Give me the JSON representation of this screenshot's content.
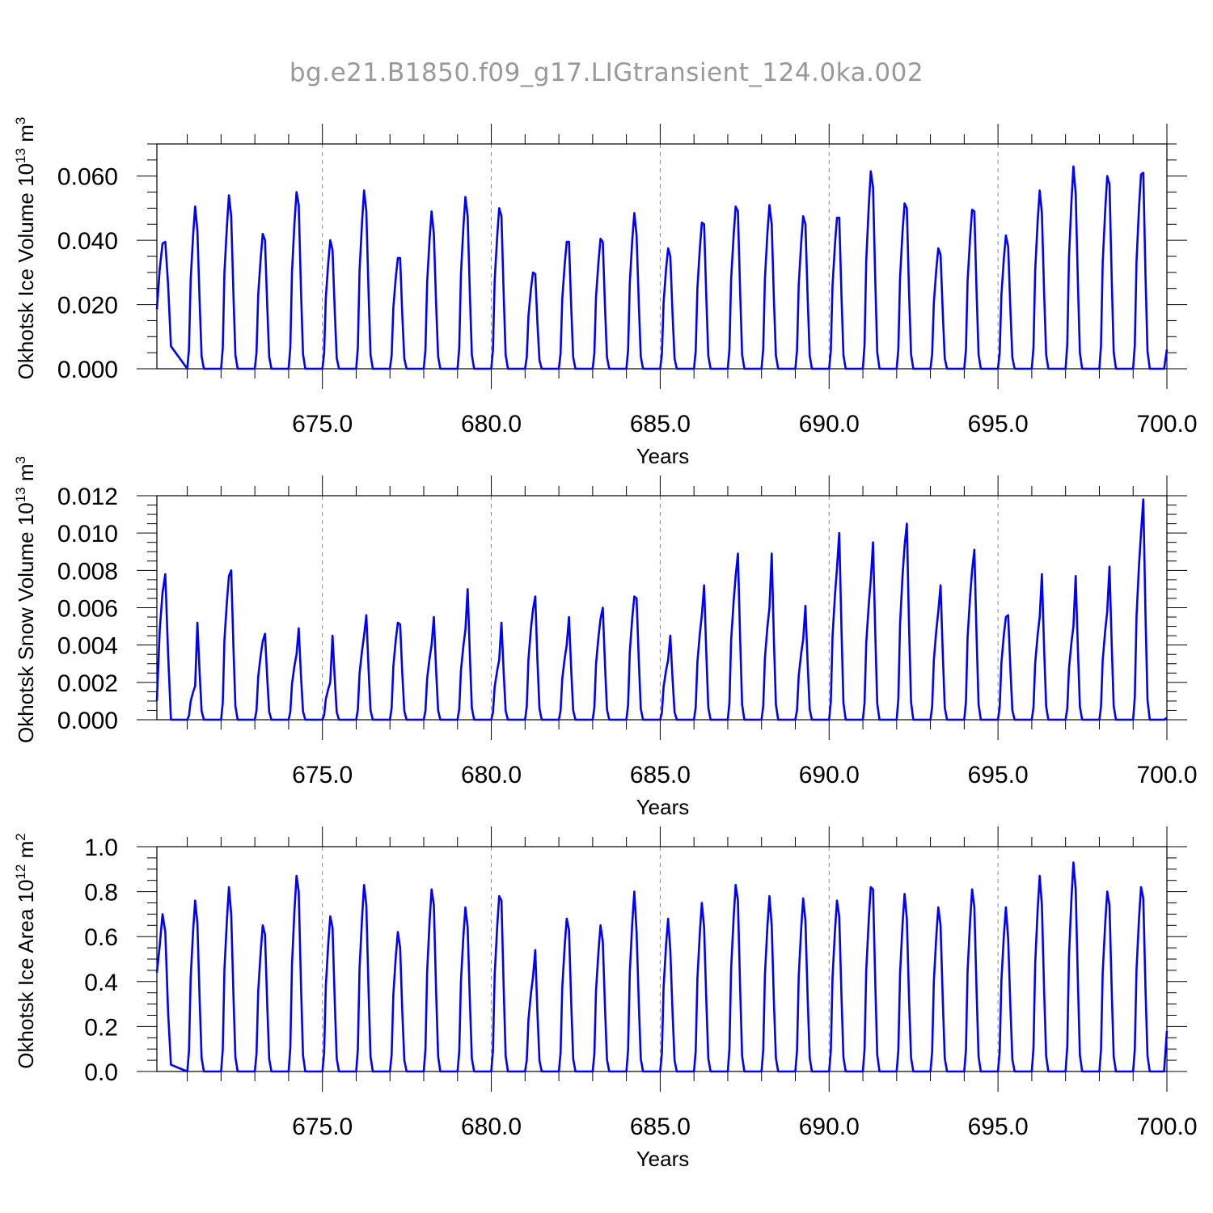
{
  "page_title": "bg.e21.B1850.f09_g17.LIGtransient_124.0ka.002",
  "style": {
    "line_color": "#0000ff",
    "grid_color": "#888888"
  },
  "chart_data": [
    {
      "type": "line",
      "ylabel": "Okhotsk Ice Volume 10^13 m^3",
      "ylabel_base": "Okhotsk Ice Volume 10",
      "ylabel_exp": "13",
      "ylabel_unit": "m",
      "ylabel_unit_exp": "3",
      "xlabel": "Years",
      "xlim": [
        670.1,
        700.0
      ],
      "ylim": [
        0.0,
        0.07
      ],
      "xticks": [
        "675.0",
        "680.0",
        "685.0",
        "690.0",
        "695.0",
        "700.0"
      ],
      "xtick_values": [
        675,
        680,
        685,
        690,
        695,
        700
      ],
      "yticks": [
        "0.000",
        "0.020",
        "0.040",
        "0.060"
      ],
      "ytick_values": [
        0.0,
        0.02,
        0.04,
        0.06
      ],
      "grid": "vertical dashed at major x ticks",
      "start_year": 670.1,
      "step": 0.08333,
      "leading": [
        0.0185,
        0.031,
        0.039,
        0.0395,
        0.026,
        0.007
      ],
      "cycles": [
        [
          671,
          0.0505,
          0.043
        ],
        [
          672,
          0.054,
          0.0475
        ],
        [
          673,
          0.042,
          0.04
        ],
        [
          674,
          0.055,
          0.051
        ],
        [
          675,
          0.04,
          0.037
        ],
        [
          676,
          0.0555,
          0.049
        ],
        [
          677,
          0.0345,
          0.0345
        ],
        [
          678,
          0.049,
          0.042
        ],
        [
          679,
          0.0535,
          0.0475
        ],
        [
          680,
          0.05,
          0.0475
        ],
        [
          681,
          0.03,
          0.0295
        ],
        [
          682,
          0.0395,
          0.0395
        ],
        [
          683,
          0.0405,
          0.0395
        ],
        [
          684,
          0.0485,
          0.0415
        ],
        [
          685,
          0.0375,
          0.035
        ],
        [
          686,
          0.0455,
          0.045
        ],
        [
          687,
          0.0505,
          0.049
        ],
        [
          688,
          0.051,
          0.045
        ],
        [
          689,
          0.0475,
          0.045
        ],
        [
          690,
          0.047,
          0.047
        ],
        [
          691,
          0.0615,
          0.0565
        ],
        [
          692,
          0.0515,
          0.05
        ],
        [
          693,
          0.0375,
          0.0355
        ],
        [
          694,
          0.0495,
          0.049
        ],
        [
          695,
          0.0415,
          0.038
        ],
        [
          696,
          0.0555,
          0.0485
        ],
        [
          697,
          0.063,
          0.0545
        ],
        [
          698,
          0.06,
          0.0575
        ],
        [
          699,
          0.0605,
          0.061
        ]
      ],
      "end_value": 0.006
    },
    {
      "type": "line",
      "ylabel": "Okhotsk Snow Volume 10^13 m^3",
      "ylabel_base": "Okhotsk Snow Volume 10",
      "ylabel_exp": "13",
      "ylabel_unit": "m",
      "ylabel_unit_exp": "3",
      "xlabel": "Years",
      "xlim": [
        670.1,
        700.0
      ],
      "ylim": [
        0.0,
        0.012
      ],
      "xticks": [
        "675.0",
        "680.0",
        "685.0",
        "690.0",
        "695.0",
        "700.0"
      ],
      "xtick_values": [
        675,
        680,
        685,
        690,
        695,
        700
      ],
      "yticks": [
        "0.000",
        "0.002",
        "0.004",
        "0.006",
        "0.008",
        "0.010",
        "0.012"
      ],
      "ytick_values": [
        0.0,
        0.002,
        0.004,
        0.006,
        0.008,
        0.01,
        0.012
      ],
      "grid": "vertical dashed at major x ticks",
      "start_year": 670.1,
      "step": 0.08333,
      "leading": [
        0.001,
        0.0048,
        0.0068,
        0.0078,
        0.0035,
        0.0
      ],
      "cycles": [
        [
          671,
          0.0018,
          0.0052
        ],
        [
          672,
          0.0077,
          0.008
        ],
        [
          673,
          0.0042,
          0.0046
        ],
        [
          674,
          0.0035,
          0.0049
        ],
        [
          675,
          0.002,
          0.0045
        ],
        [
          676,
          0.0045,
          0.0056
        ],
        [
          677,
          0.0052,
          0.0051
        ],
        [
          678,
          0.004,
          0.0055
        ],
        [
          679,
          0.0048,
          0.007
        ],
        [
          680,
          0.0032,
          0.0052
        ],
        [
          681,
          0.0059,
          0.0066
        ],
        [
          682,
          0.004,
          0.0055
        ],
        [
          683,
          0.0054,
          0.006
        ],
        [
          684,
          0.0066,
          0.0065
        ],
        [
          685,
          0.0032,
          0.0045
        ],
        [
          686,
          0.0056,
          0.0072
        ],
        [
          687,
          0.0077,
          0.0089
        ],
        [
          688,
          0.006,
          0.0089
        ],
        [
          689,
          0.0043,
          0.0061
        ],
        [
          690,
          0.0081,
          0.01
        ],
        [
          691,
          0.0075,
          0.0095
        ],
        [
          692,
          0.0093,
          0.0105
        ],
        [
          693,
          0.0058,
          0.0072
        ],
        [
          694,
          0.008,
          0.0091
        ],
        [
          695,
          0.0055,
          0.0056
        ],
        [
          696,
          0.0055,
          0.0078
        ],
        [
          697,
          0.005,
          0.0077
        ],
        [
          698,
          0.0058,
          0.0082
        ],
        [
          699,
          0.01,
          0.0118
        ]
      ],
      "end_value": 0.0001
    },
    {
      "type": "line",
      "ylabel": "Okhotsk Ice Area 10^12 m^2",
      "ylabel_base": "Okhotsk Ice Area 10",
      "ylabel_exp": "12",
      "ylabel_unit": "m",
      "ylabel_unit_exp": "2",
      "xlabel": "Years",
      "xlim": [
        670.1,
        700.0
      ],
      "ylim": [
        0.0,
        1.0
      ],
      "xticks": [
        "675.0",
        "680.0",
        "685.0",
        "690.0",
        "695.0",
        "700.0"
      ],
      "xtick_values": [
        675,
        680,
        685,
        690,
        695,
        700
      ],
      "yticks": [
        "0.0",
        "0.2",
        "0.4",
        "0.6",
        "0.8",
        "1.0"
      ],
      "ytick_values": [
        0.0,
        0.2,
        0.4,
        0.6,
        0.8,
        1.0
      ],
      "grid": "vertical dashed at major x ticks",
      "start_year": 670.1,
      "step": 0.08333,
      "leading": [
        0.44,
        0.56,
        0.7,
        0.62,
        0.26,
        0.03
      ],
      "cycles": [
        [
          671,
          0.76,
          0.66
        ],
        [
          672,
          0.82,
          0.7
        ],
        [
          673,
          0.65,
          0.61
        ],
        [
          674,
          0.87,
          0.8
        ],
        [
          675,
          0.69,
          0.64
        ],
        [
          676,
          0.83,
          0.74
        ],
        [
          677,
          0.62,
          0.55
        ],
        [
          678,
          0.81,
          0.74
        ],
        [
          679,
          0.73,
          0.64
        ],
        [
          680,
          0.78,
          0.76
        ],
        [
          681,
          0.42,
          0.54
        ],
        [
          682,
          0.68,
          0.63
        ],
        [
          683,
          0.65,
          0.58
        ],
        [
          684,
          0.8,
          0.62
        ],
        [
          685,
          0.68,
          0.54
        ],
        [
          686,
          0.75,
          0.64
        ],
        [
          687,
          0.83,
          0.76
        ],
        [
          688,
          0.78,
          0.65
        ],
        [
          689,
          0.77,
          0.67
        ],
        [
          690,
          0.76,
          0.69
        ],
        [
          691,
          0.82,
          0.81
        ],
        [
          692,
          0.79,
          0.68
        ],
        [
          693,
          0.73,
          0.65
        ],
        [
          694,
          0.81,
          0.73
        ],
        [
          695,
          0.73,
          0.59
        ],
        [
          696,
          0.87,
          0.74
        ],
        [
          697,
          0.93,
          0.81
        ],
        [
          698,
          0.8,
          0.74
        ],
        [
          699,
          0.82,
          0.77
        ]
      ],
      "end_value": 0.18
    }
  ]
}
